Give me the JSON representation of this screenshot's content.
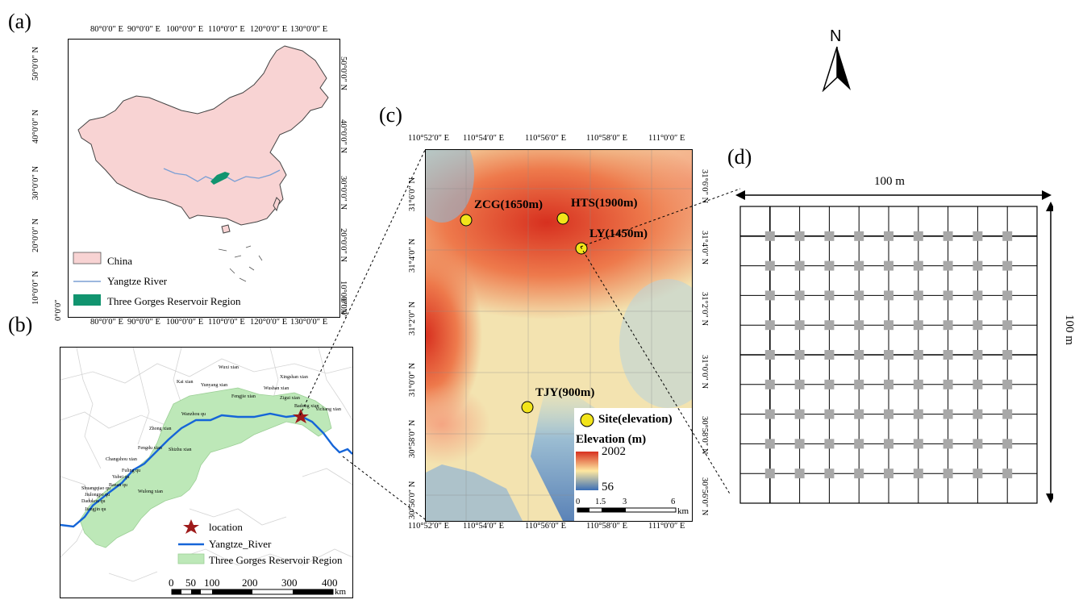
{
  "panels": {
    "a": "(a)",
    "b": "(b)",
    "c": "(c)",
    "d": "(d)"
  },
  "colors": {
    "china_fill": "#f8d3d3",
    "river_a": "#7b9fd4",
    "tgr_dark": "#11946f",
    "river_b": "#1565d8",
    "tgr_light": "#bde8b8",
    "star": "#9e1a1a",
    "site_fill": "#f2e41a",
    "grid_plot": "#a8a8a8"
  },
  "panel_a": {
    "lon_labels": [
      "80°0′0″ E",
      "90°0′0″ E",
      "100°0′0″ E",
      "110°0′0″ E",
      "120°0′0″ E",
      "130°0′0″ E"
    ],
    "lat_labels": [
      "50°0′0″ N",
      "40°0′0″ N",
      "30°0′0″ N",
      "20°0′0″ N",
      "10°0′0″ N",
      "0°0′0″"
    ],
    "legend": {
      "china": "China",
      "river": "Yangtze River",
      "tgr": "Three Gorges Reservoir Region"
    }
  },
  "panel_b": {
    "legend": {
      "location": "location",
      "river": "Yangtze_River",
      "tgr": "Three Gorges Reservoir Region"
    },
    "scale_labels": [
      "0",
      "50",
      "100",
      "200",
      "300",
      "400"
    ],
    "scale_unit": "km",
    "county_labels": [
      "Wuxi xian",
      "Kai xian",
      "Yunyang xian",
      "Wushan xian",
      "Badong xian",
      "Xingshan xian",
      "Zigui xian",
      "Fengjie xian",
      "Wanzhou qu",
      "Zhong xian",
      "Shizhu xian",
      "Fengdu xian",
      "Changshou xian",
      "Fuling qu",
      "Wulong xian",
      "Shuangqiao qu",
      "Jiulongpo qu",
      "Dadukou qu",
      "Yubei qu",
      "Banan qu",
      "Jiangjin qu",
      "Yichang xian"
    ]
  },
  "panel_c": {
    "lon_labels": [
      "110°52′0″ E",
      "110°54′0″ E",
      "110°56′0″ E",
      "110°58′0″ E",
      "111°0′0″ E"
    ],
    "lat_labels": [
      "31°6′0″ N",
      "31°4′0″ N",
      "31°2′0″ N",
      "31°0′0″ N",
      "30°58′0″ N",
      "30°56′0″ N"
    ],
    "sites": [
      {
        "label": "ZCG(1650m)"
      },
      {
        "label": "HTS(1900m)"
      },
      {
        "label": "LY(1450m)"
      },
      {
        "label": "TJY(900m)"
      }
    ],
    "legend_site": "Site(elevation)",
    "legend_elev_title": "Elevation (m)",
    "elev_max": "2002",
    "elev_min": "56",
    "scale_labels": [
      "0",
      "1.5",
      "3",
      "6"
    ],
    "scale_unit": "km"
  },
  "panel_d": {
    "width_label": "100 m",
    "height_label": "100 m",
    "grid_cells": 10,
    "subplots_per_side": 9
  },
  "north_arrow": "N"
}
